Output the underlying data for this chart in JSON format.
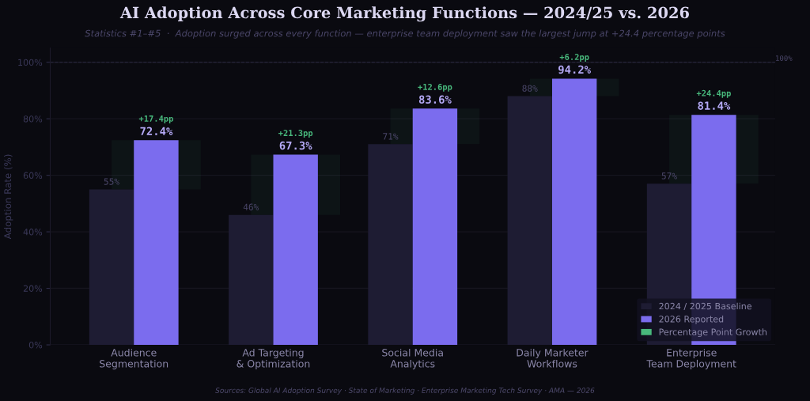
{
  "chart_data": {
    "type": "bar",
    "title": "AI Adoption Across Core Marketing Functions — 2024/25 vs. 2026",
    "subtitle": "Statistics #1–#5  ·  Adoption surged across every function — enterprise team deployment saw the largest jump at +24.4 percentage points",
    "ylabel": "Adoption Rate (%)",
    "categories": [
      "Audience\nSegmentation",
      "Ad Targeting\n& Optimization",
      "Social Media\nAnalytics",
      "Daily Marketer\nWorkflows",
      "Enterprise\nTeam Deployment"
    ],
    "series": [
      {
        "name": "2024 / 2025 Baseline",
        "color": "#1e1c33",
        "values": [
          55,
          46,
          71,
          88,
          57
        ],
        "value_labels": [
          "55%",
          "46%",
          "71%",
          "88%",
          "57%"
        ]
      },
      {
        "name": "2026 Reported",
        "color": "#7b6cee",
        "values": [
          72.4,
          67.3,
          83.6,
          94.2,
          81.4
        ],
        "value_labels": [
          "72.4%",
          "67.3%",
          "83.6%",
          "94.2%",
          "81.4%"
        ]
      },
      {
        "name": "Percentage Point Growth",
        "color": "#48b87c",
        "base": [
          55,
          46,
          71,
          88,
          57
        ],
        "values": [
          17.4,
          21.3,
          12.6,
          6.2,
          24.4
        ],
        "value_labels": [
          "+17.4pp",
          "+21.3pp",
          "+12.6pp",
          "+6.2pp",
          "+24.4pp"
        ]
      }
    ],
    "ylim": [
      0,
      105
    ],
    "yticks": [
      {
        "value": 0,
        "label": "0%"
      },
      {
        "value": 20,
        "label": "20%"
      },
      {
        "value": 40,
        "label": "40%"
      },
      {
        "value": 60,
        "label": "60%"
      },
      {
        "value": 80,
        "label": "80%"
      },
      {
        "value": 100,
        "label": "100%"
      }
    ],
    "ref_lines": [
      {
        "axis": "y",
        "value": 100,
        "label": "100%",
        "line_style": "dashed",
        "color": "#2a2840"
      }
    ],
    "grid": "y",
    "legend": "bottom right",
    "annotations": [
      "Sources: Global AI Adoption Survey · State of Marketing · Enterprise Marketing Tech Survey · AMA — 2026"
    ]
  }
}
